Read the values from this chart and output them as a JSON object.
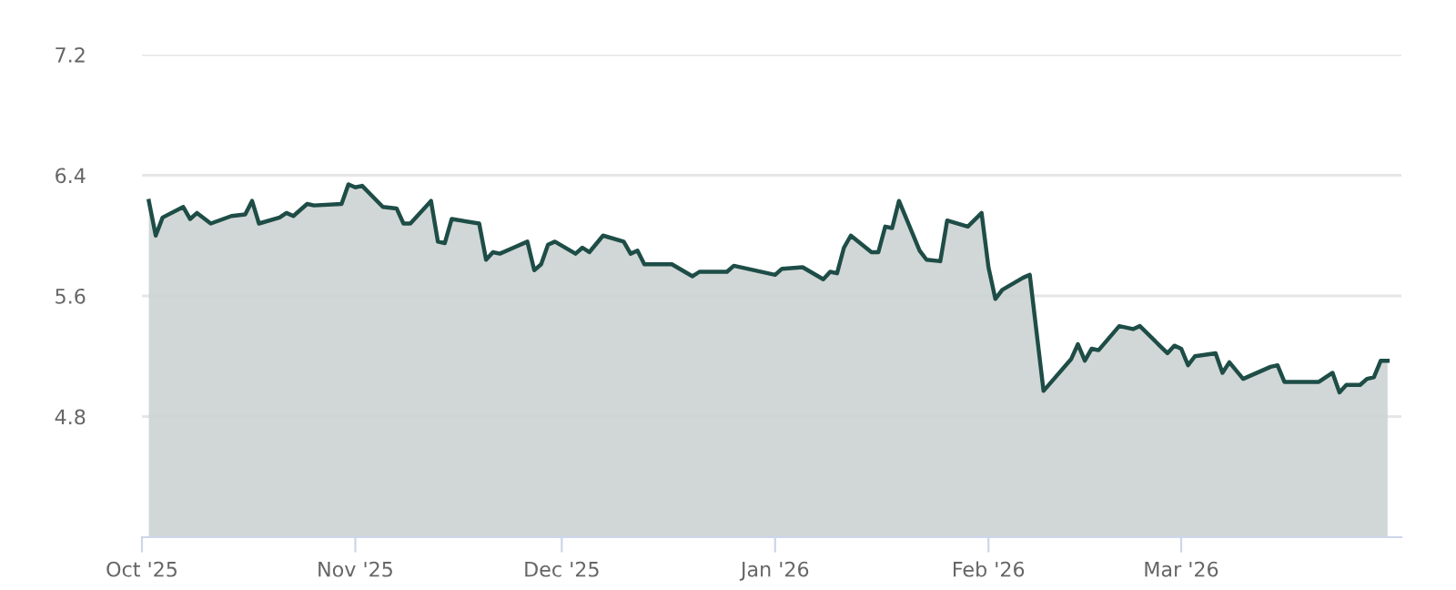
{
  "chart_data": {
    "type": "area",
    "x": [
      "2025-10-02",
      "2025-10-03",
      "2025-10-04",
      "2025-10-07",
      "2025-10-08",
      "2025-10-09",
      "2025-10-11",
      "2025-10-14",
      "2025-10-16",
      "2025-10-17",
      "2025-10-18",
      "2025-10-21",
      "2025-10-22",
      "2025-10-23",
      "2025-10-25",
      "2025-10-26",
      "2025-10-30",
      "2025-10-31",
      "2025-11-01",
      "2025-11-02",
      "2025-11-05",
      "2025-11-07",
      "2025-11-08",
      "2025-11-09",
      "2025-11-12",
      "2025-11-13",
      "2025-11-14",
      "2025-11-15",
      "2025-11-19",
      "2025-11-20",
      "2025-11-21",
      "2025-11-22",
      "2025-11-24",
      "2025-11-26",
      "2025-11-27",
      "2025-11-28",
      "2025-11-29",
      "2025-11-30",
      "2025-12-03",
      "2025-12-04",
      "2025-12-05",
      "2025-12-07",
      "2025-12-10",
      "2025-12-11",
      "2025-12-12",
      "2025-12-13",
      "2025-12-17",
      "2025-12-20",
      "2025-12-21",
      "2025-12-25",
      "2025-12-26",
      "2026-01-01",
      "2026-01-02",
      "2026-01-05",
      "2026-01-08",
      "2026-01-09",
      "2026-01-10",
      "2026-01-11",
      "2026-01-12",
      "2026-01-15",
      "2026-01-16",
      "2026-01-17",
      "2026-01-18",
      "2026-01-19",
      "2026-01-22",
      "2026-01-23",
      "2026-01-25",
      "2026-01-26",
      "2026-01-29",
      "2026-01-31",
      "2026-02-01",
      "2026-02-02",
      "2026-02-03",
      "2026-02-06",
      "2026-02-07",
      "2026-02-09",
      "2026-02-13",
      "2026-02-14",
      "2026-02-15",
      "2026-02-16",
      "2026-02-17",
      "2026-02-20",
      "2026-02-22",
      "2026-02-23",
      "2026-02-27",
      "2026-02-28",
      "2026-03-01",
      "2026-03-02",
      "2026-03-03",
      "2026-03-06",
      "2026-03-07",
      "2026-03-08",
      "2026-03-10",
      "2026-03-14",
      "2026-03-15",
      "2026-03-16",
      "2026-03-21",
      "2026-03-23",
      "2026-03-24",
      "2026-03-25",
      "2026-03-27",
      "2026-03-28",
      "2026-03-29",
      "2026-03-30",
      "2026-03-31"
    ],
    "values": [
      6.23,
      6.0,
      6.12,
      6.19,
      6.11,
      6.15,
      6.08,
      6.13,
      6.14,
      6.23,
      6.08,
      6.12,
      6.15,
      6.13,
      6.21,
      6.2,
      6.21,
      6.34,
      6.32,
      6.33,
      6.19,
      6.18,
      6.08,
      6.08,
      6.23,
      5.96,
      5.95,
      6.11,
      6.08,
      5.84,
      5.89,
      5.88,
      5.92,
      5.96,
      5.77,
      5.81,
      5.94,
      5.96,
      5.88,
      5.92,
      5.89,
      6.0,
      5.96,
      5.88,
      5.9,
      5.81,
      5.81,
      5.73,
      5.76,
      5.76,
      5.8,
      5.74,
      5.78,
      5.79,
      5.71,
      5.76,
      5.75,
      5.92,
      6.0,
      5.89,
      5.89,
      6.06,
      6.05,
      6.23,
      5.9,
      5.84,
      5.83,
      6.1,
      6.06,
      6.15,
      5.79,
      5.58,
      5.64,
      5.72,
      5.74,
      4.97,
      5.18,
      5.28,
      5.17,
      5.25,
      5.24,
      5.4,
      5.38,
      5.4,
      5.22,
      5.27,
      5.25,
      5.14,
      5.2,
      5.22,
      5.09,
      5.16,
      5.05,
      5.13,
      5.14,
      5.03,
      5.03,
      5.09,
      4.96,
      5.01,
      5.01,
      5.05,
      5.06,
      5.17,
      5.17
    ],
    "color": "#1e4d47",
    "xlim": [
      "2025-10-01",
      "2026-04-02"
    ],
    "xticks": [
      {
        "value": "2025-10-01",
        "label": "Oct '25"
      },
      {
        "value": "2025-11-01",
        "label": "Nov '25"
      },
      {
        "value": "2025-12-01",
        "label": "Dec '25"
      },
      {
        "value": "2026-01-01",
        "label": "Jan '26"
      },
      {
        "value": "2026-02-01",
        "label": "Feb '26"
      },
      {
        "value": "2026-03-01",
        "label": "Mar '26"
      }
    ],
    "ylim": [
      4.0,
      7.2
    ],
    "yticks": [
      4.8,
      5.6,
      6.4,
      7.2
    ],
    "grid": "y",
    "legend": false,
    "marker": "none",
    "line_style": "solid"
  }
}
